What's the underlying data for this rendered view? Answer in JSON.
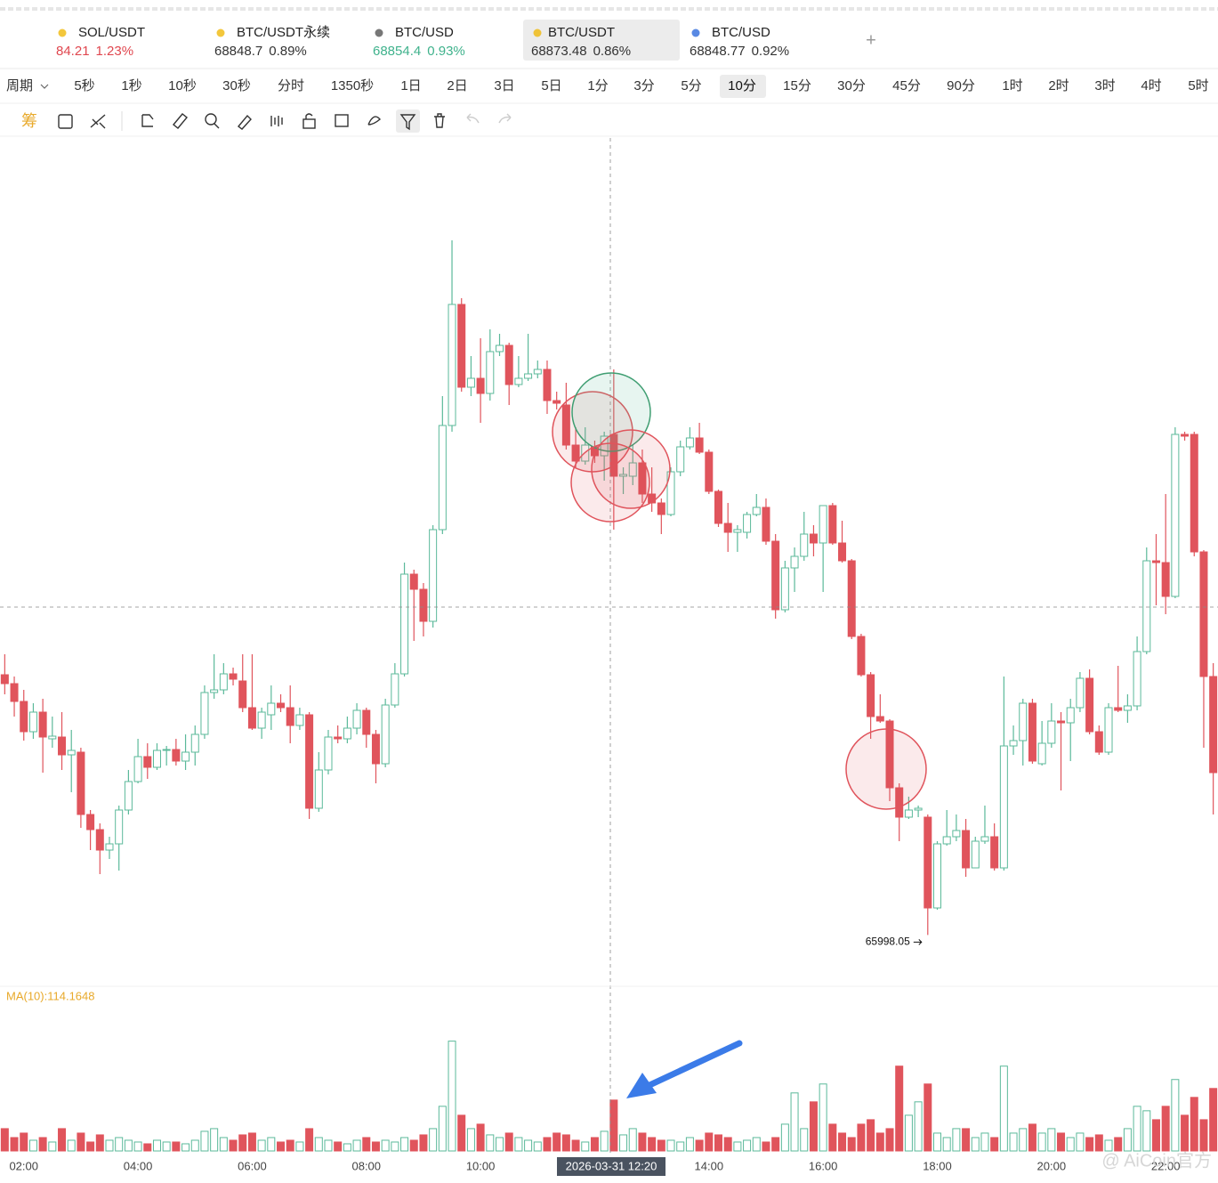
{
  "tickers": [
    {
      "name": "SOL/USDT",
      "price": "84.21",
      "change": "1.23%",
      "color": "#e0474f",
      "icon": "#f0b90b"
    },
    {
      "name": "BTC/USDT永续",
      "price": "68848.7",
      "change": "0.89%",
      "color": "#333333",
      "icon": "#f0b90b"
    },
    {
      "name": "BTC/USD",
      "price": "68854.4",
      "change": "0.93%",
      "color": "#3fb28c",
      "icon": "#555555"
    },
    {
      "name": "BTC/USDT",
      "price": "68873.48",
      "change": "0.86%",
      "color": "#333333",
      "icon": "#f0b90b"
    },
    {
      "name": "BTC/USD",
      "price": "68848.77",
      "change": "0.92%",
      "color": "#333333",
      "icon": "#2f6bdc"
    }
  ],
  "selected_ticker": 3,
  "add_button": "+",
  "periods": [
    "周期",
    "5秒",
    "1秒",
    "10秒",
    "30秒",
    "分时",
    "1350秒",
    "1日",
    "2日",
    "3日",
    "5日",
    "1分",
    "3分",
    "5分",
    "10分",
    "15分",
    "30分",
    "45分",
    "90分",
    "1时",
    "2时",
    "3时",
    "4时",
    "5时"
  ],
  "selected_period": 14,
  "toolbar_label": "筹",
  "watermark": "@ AiCoin官方",
  "chart_data": {
    "type": "candlestick",
    "up_color": "#5bb99a",
    "down_color": "#e0545c",
    "ylim": [
      65725,
      70475
    ],
    "vlim": [
      0,
      1300
    ],
    "ma_label": "MA(10):114.1648",
    "crosshair_label": "2026-03-31 12:20",
    "categories": [
      null,
      null,
      "02:00",
      null,
      null,
      null,
      null,
      null,
      null,
      null,
      null,
      null,
      null,
      null,
      "04:00",
      null,
      null,
      null,
      null,
      null,
      null,
      null,
      null,
      null,
      null,
      null,
      "06:00",
      null,
      null,
      null,
      null,
      null,
      null,
      null,
      null,
      null,
      null,
      null,
      "08:00",
      null,
      null,
      null,
      null,
      null,
      null,
      null,
      null,
      null,
      null,
      null,
      "10:00",
      null,
      null,
      null,
      null,
      null,
      null,
      null,
      null,
      null,
      null,
      null,
      null,
      null,
      null,
      null,
      null,
      null,
      null,
      null,
      null,
      null,
      null,
      null,
      "14:00",
      null,
      null,
      null,
      null,
      null,
      null,
      null,
      null,
      null,
      null,
      null,
      "16:00",
      null,
      null,
      null,
      null,
      null,
      null,
      null,
      null,
      null,
      null,
      null,
      "18:00",
      null,
      null,
      null,
      null,
      null,
      null,
      null,
      null,
      null,
      null,
      null,
      "20:00",
      null,
      null,
      null,
      null,
      null,
      null,
      null,
      null,
      null,
      null,
      null,
      "22:00",
      null,
      null,
      null,
      null,
      null
    ],
    "candles": [
      [
        67460,
        67575,
        67350,
        67410
      ],
      [
        67410,
        67450,
        67225,
        67310
      ],
      [
        67310,
        67375,
        67090,
        67140
      ],
      [
        67140,
        67300,
        67100,
        67250
      ],
      [
        67250,
        67325,
        66910,
        67110
      ],
      [
        67100,
        67225,
        67050,
        67115
      ],
      [
        67110,
        67250,
        66925,
        67010
      ],
      [
        67010,
        67150,
        66800,
        67035
      ],
      [
        67025,
        67050,
        66600,
        66675
      ],
      [
        66675,
        66700,
        66475,
        66590
      ],
      [
        66590,
        66625,
        66340,
        66475
      ],
      [
        66475,
        66550,
        66425,
        66510
      ],
      [
        66510,
        66725,
        66360,
        66700
      ],
      [
        66700,
        66925,
        66675,
        66860
      ],
      [
        66860,
        67100,
        66850,
        67000
      ],
      [
        67000,
        67075,
        66875,
        66940
      ],
      [
        66940,
        67075,
        66925,
        67035
      ],
      [
        67035,
        67060,
        66950,
        67040
      ],
      [
        67040,
        67100,
        66950,
        66975
      ],
      [
        66975,
        67125,
        66925,
        67025
      ],
      [
        67025,
        67175,
        66950,
        67125
      ],
      [
        67125,
        67400,
        67100,
        67360
      ],
      [
        67360,
        67575,
        67325,
        67375
      ],
      [
        67375,
        67525,
        67350,
        67465
      ],
      [
        67465,
        67500,
        67400,
        67435
      ],
      [
        67425,
        67575,
        67250,
        67275
      ],
      [
        67275,
        67575,
        67150,
        67160
      ],
      [
        67160,
        67275,
        67100,
        67250
      ],
      [
        67235,
        67400,
        67150,
        67300
      ],
      [
        67300,
        67350,
        67250,
        67275
      ],
      [
        67275,
        67400,
        67075,
        67175
      ],
      [
        67175,
        67275,
        67150,
        67235
      ],
      [
        67235,
        67250,
        66650,
        66710
      ],
      [
        66710,
        67025,
        66690,
        66925
      ],
      [
        66925,
        67150,
        66900,
        67110
      ],
      [
        67110,
        67175,
        67075,
        67100
      ],
      [
        67100,
        67225,
        67075,
        67160
      ],
      [
        67160,
        67300,
        67125,
        67260
      ],
      [
        67260,
        67275,
        67050,
        67125
      ],
      [
        67125,
        67150,
        66850,
        66960
      ],
      [
        66960,
        67325,
        66940,
        67290
      ],
      [
        67290,
        67525,
        67275,
        67465
      ],
      [
        67465,
        68090,
        67450,
        68025
      ],
      [
        68025,
        68050,
        67650,
        67940
      ],
      [
        67940,
        67975,
        67675,
        67760
      ],
      [
        67760,
        68300,
        67725,
        68275
      ],
      [
        68275,
        69025,
        68250,
        68860
      ],
      [
        68860,
        69900,
        68825,
        69540
      ],
      [
        69540,
        69575,
        69050,
        69075
      ],
      [
        69075,
        69250,
        69025,
        69125
      ],
      [
        69125,
        69350,
        68875,
        69040
      ],
      [
        69040,
        69400,
        69000,
        69275
      ],
      [
        69275,
        69375,
        69250,
        69310
      ],
      [
        69310,
        69325,
        68975,
        69090
      ],
      [
        69090,
        69250,
        69075,
        69125
      ],
      [
        69125,
        69375,
        69110,
        69150
      ],
      [
        69150,
        69225,
        69125,
        69175
      ],
      [
        69175,
        69225,
        68925,
        69000
      ],
      [
        69000,
        69050,
        68950,
        68985
      ],
      [
        68975,
        69100,
        68725,
        68750
      ],
      [
        68750,
        68850,
        68625,
        68660
      ],
      [
        68660,
        68850,
        68640,
        68750
      ],
      [
        68740,
        68775,
        68650,
        68690
      ],
      [
        68690,
        68825,
        68550,
        68800
      ],
      [
        68810,
        69175,
        68275,
        68575
      ],
      [
        68575,
        68625,
        68475,
        68585
      ],
      [
        68575,
        68750,
        68525,
        68650
      ],
      [
        68650,
        68725,
        68425,
        68475
      ],
      [
        68475,
        68625,
        68375,
        68425
      ],
      [
        68425,
        68450,
        68250,
        68360
      ],
      [
        68360,
        68625,
        68350,
        68600
      ],
      [
        68600,
        68775,
        68575,
        68740
      ],
      [
        68740,
        68850,
        68725,
        68790
      ],
      [
        68790,
        68875,
        68700,
        68710
      ],
      [
        68710,
        68725,
        68475,
        68490
      ],
      [
        68490,
        68500,
        68290,
        68310
      ],
      [
        68310,
        68425,
        68150,
        68260
      ],
      [
        68260,
        68300,
        68150,
        68275
      ],
      [
        68260,
        68375,
        68225,
        68360
      ],
      [
        68360,
        68475,
        68350,
        68400
      ],
      [
        68400,
        68450,
        68190,
        68210
      ],
      [
        68210,
        68250,
        67775,
        67825
      ],
      [
        67825,
        68100,
        67810,
        68060
      ],
      [
        68060,
        68175,
        67925,
        68125
      ],
      [
        68125,
        68375,
        68100,
        68250
      ],
      [
        68250,
        68300,
        68125,
        68200
      ],
      [
        68200,
        68410,
        67925,
        68410
      ],
      [
        68410,
        68425,
        68190,
        68200
      ],
      [
        68200,
        68325,
        68090,
        68100
      ],
      [
        68100,
        68110,
        67660,
        67675
      ],
      [
        67675,
        67690,
        67450,
        67460
      ],
      [
        67460,
        67475,
        67100,
        67225
      ],
      [
        67225,
        67350,
        67190,
        67200
      ],
      [
        67200,
        67210,
        66750,
        66825
      ],
      [
        66825,
        66850,
        66525,
        66660
      ],
      [
        66660,
        66775,
        66650,
        66700
      ],
      [
        66700,
        66725,
        66660,
        66710
      ],
      [
        66660,
        66675,
        65998.05,
        66150
      ],
      [
        66150,
        66525,
        66140,
        66510
      ],
      [
        66510,
        66700,
        66500,
        66550
      ],
      [
        66550,
        66675,
        66525,
        66585
      ],
      [
        66585,
        66650,
        66325,
        66375
      ],
      [
        66375,
        66550,
        66375,
        66525
      ],
      [
        66525,
        66725,
        66510,
        66550
      ],
      [
        66550,
        66625,
        66360,
        66375
      ],
      [
        66375,
        67450,
        66360,
        67060
      ],
      [
        67060,
        67175,
        67010,
        67090
      ],
      [
        67090,
        67325,
        66950,
        67300
      ],
      [
        67300,
        67325,
        66960,
        66975
      ],
      [
        66960,
        67200,
        66950,
        67075
      ],
      [
        67075,
        67300,
        67050,
        67200
      ],
      [
        67200,
        67250,
        66810,
        67190
      ],
      [
        67190,
        67325,
        66975,
        67275
      ],
      [
        67275,
        67475,
        67250,
        67440
      ],
      [
        67440,
        67490,
        67125,
        67140
      ],
      [
        67140,
        67175,
        67010,
        67025
      ],
      [
        67025,
        67300,
        67010,
        67275
      ],
      [
        67275,
        67510,
        67250,
        67260
      ],
      [
        67260,
        67350,
        67190,
        67285
      ],
      [
        67285,
        67675,
        67260,
        67590
      ],
      [
        67590,
        68175,
        67575,
        68100
      ],
      [
        68100,
        68250,
        67850,
        68090
      ],
      [
        68090,
        68475,
        67800,
        67900
      ],
      [
        67900,
        68850,
        67890,
        68810
      ],
      [
        68810,
        68825,
        68775,
        68800
      ],
      [
        68810,
        68825,
        68125,
        68150
      ],
      [
        68150,
        68160,
        67050,
        67450
      ],
      [
        67450,
        67525,
        66675,
        66910
      ]
    ],
    "volumes": [
      200,
      120,
      160,
      96,
      120,
      80,
      200,
      96,
      160,
      80,
      144,
      96,
      120,
      96,
      80,
      64,
      96,
      80,
      80,
      64,
      96,
      176,
      200,
      120,
      96,
      144,
      160,
      96,
      120,
      80,
      96,
      80,
      200,
      120,
      96,
      80,
      64,
      96,
      120,
      80,
      96,
      80,
      120,
      96,
      144,
      200,
      400,
      984,
      320,
      200,
      240,
      144,
      120,
      160,
      120,
      96,
      80,
      120,
      160,
      144,
      96,
      80,
      120,
      176,
      456,
      144,
      200,
      160,
      120,
      96,
      96,
      80,
      120,
      96,
      160,
      144,
      120,
      80,
      96,
      120,
      80,
      120,
      240,
      520,
      200,
      440,
      600,
      240,
      160,
      120,
      240,
      280,
      160,
      200,
      760,
      320,
      440,
      600,
      160,
      120,
      200,
      200,
      120,
      160,
      120,
      760,
      160,
      200,
      240,
      160,
      200,
      160,
      120,
      160,
      120,
      144,
      96,
      120,
      200,
      400,
      360,
      280,
      400,
      640,
      320,
      480,
      280,
      560
    ]
  }
}
